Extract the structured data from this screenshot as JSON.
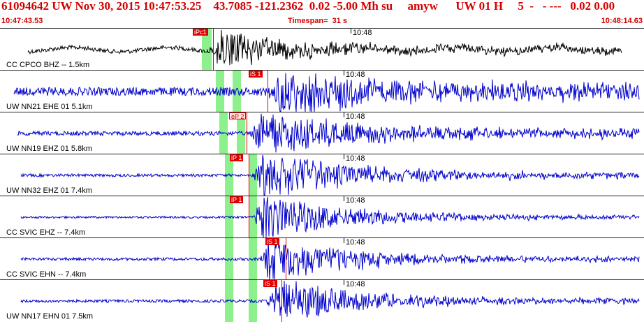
{
  "header": {
    "title": "61094642 UW Nov 30, 2015 10:47:53.25    43.7085 -121.2362  0.02 -5.00 Mh su     amyw      UW 01 H     5  -   - ---   0.02 0.00",
    "start_time": "10:47:43.53",
    "timespan": "Timespan=  31 s",
    "end_time": "10:48:14.63"
  },
  "colors": {
    "header_text": "#d40000",
    "trace_first": "#000000",
    "trace": "#0000cc",
    "pick": "#e00000",
    "window": "#8cf08c"
  },
  "traces": [
    {
      "station": "CC CPCO BHZ -- 1.5km",
      "minute_label": "10:48",
      "pick_label": "iPc1"
    },
    {
      "station": "UW NN21 EHE 01 5.1km",
      "minute_label": "10:48",
      "pick_label": "iS 1"
    },
    {
      "station": "UW NN19 EHZ 01 5.8km",
      "minute_label": "10:48",
      "pick_label": "eP 2"
    },
    {
      "station": "UW NN32 EHZ 01 7.4km",
      "minute_label": "10:48",
      "pick_label": "iP 1"
    },
    {
      "station": "CC SVIC EHZ -- 7.4km",
      "minute_label": "10:48",
      "pick_label": "iP 1"
    },
    {
      "station": "CC SVIC EHN -- 7.4km",
      "minute_label": "10:48",
      "pick_label": "iS 1"
    },
    {
      "station": "UW NN17 EHN 01 7.5km",
      "minute_label": "10:48",
      "pick_label": "iS 1"
    }
  ]
}
